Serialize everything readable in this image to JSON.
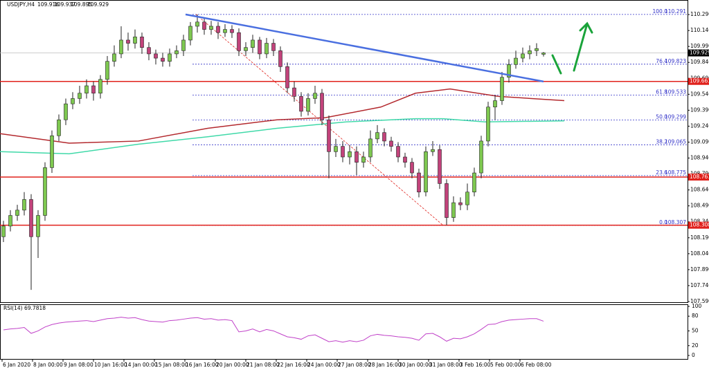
{
  "chart_data": {
    "type": "candlestick",
    "title": "USDJPY,H4",
    "bull_color": "#7ec850",
    "bear_color": "#c2437b",
    "ylim": [
      107.577,
      110.427
    ],
    "yticks": [
      {
        "value": 110.29,
        "label": "110.290"
      },
      {
        "value": 110.14,
        "label": "110.140"
      },
      {
        "value": 109.99,
        "label": "109.990"
      },
      {
        "value": 109.84,
        "label": "109.840"
      },
      {
        "value": 109.69,
        "label": "109.690"
      },
      {
        "value": 109.54,
        "label": "109.540"
      },
      {
        "value": 109.39,
        "label": "109.390"
      },
      {
        "value": 109.24,
        "label": "109.240"
      },
      {
        "value": 109.09,
        "label": "109.090"
      },
      {
        "value": 108.94,
        "label": "108.940"
      },
      {
        "value": 108.79,
        "label": "108.790"
      },
      {
        "value": 108.64,
        "label": "108.640"
      },
      {
        "value": 108.49,
        "label": "108.490"
      },
      {
        "value": 108.34,
        "label": "108.340"
      },
      {
        "value": 108.19,
        "label": "108.190"
      },
      {
        "value": 108.04,
        "label": "108.040"
      },
      {
        "value": 107.89,
        "label": "107.890"
      },
      {
        "value": 107.74,
        "label": "107.740"
      },
      {
        "value": 107.59,
        "label": "107.590"
      }
    ],
    "x_labels": [
      "6 Jan 2020",
      "8 Jan 00:00",
      "9 Jan 08:00",
      "10 Jan 16:00",
      "14 Jan 00:00",
      "15 Jan 08:00",
      "16 Jan 16:00",
      "20 Jan 00:00",
      "21 Jan 08:00",
      "22 Jan 16:00",
      "24 Jan 00:00",
      "27 Jan 08:00",
      "28 Jan 16:00",
      "30 Jan 00:00",
      "31 Jan 08:00",
      "3 Feb 16:00",
      "5 Feb 00:00",
      "6 Feb 08:00"
    ],
    "candles": [
      [
        108.2,
        108.35,
        108.15,
        108.3
      ],
      [
        108.3,
        108.45,
        108.25,
        108.4
      ],
      [
        108.4,
        108.5,
        108.35,
        108.45
      ],
      [
        108.45,
        108.62,
        108.4,
        108.55
      ],
      [
        108.55,
        108.6,
        107.7,
        108.2
      ],
      [
        108.2,
        108.45,
        108.0,
        108.4
      ],
      [
        108.4,
        108.9,
        108.35,
        108.85
      ],
      [
        108.85,
        109.2,
        108.8,
        109.15
      ],
      [
        109.15,
        109.35,
        109.1,
        109.3
      ],
      [
        109.3,
        109.5,
        109.25,
        109.45
      ],
      [
        109.45,
        109.56,
        109.4,
        109.5
      ],
      [
        109.5,
        109.62,
        109.45,
        109.55
      ],
      [
        109.55,
        109.68,
        109.5,
        109.62
      ],
      [
        109.62,
        109.66,
        109.48,
        109.55
      ],
      [
        109.55,
        109.72,
        109.5,
        109.68
      ],
      [
        109.68,
        109.9,
        109.63,
        109.85
      ],
      [
        109.85,
        110.0,
        109.8,
        109.92
      ],
      [
        109.92,
        110.18,
        109.88,
        110.05
      ],
      [
        110.05,
        110.12,
        109.95,
        110.02
      ],
      [
        110.02,
        110.15,
        109.97,
        110.08
      ],
      [
        110.08,
        110.12,
        109.92,
        109.98
      ],
      [
        109.98,
        110.03,
        109.86,
        109.92
      ],
      [
        109.92,
        109.96,
        109.82,
        109.88
      ],
      [
        109.88,
        109.93,
        109.8,
        109.85
      ],
      [
        109.85,
        109.97,
        109.8,
        109.92
      ],
      [
        109.92,
        110.0,
        109.88,
        109.95
      ],
      [
        109.95,
        110.1,
        109.9,
        110.05
      ],
      [
        110.05,
        110.22,
        110.0,
        110.18
      ],
      [
        110.18,
        110.291,
        110.12,
        110.22
      ],
      [
        110.22,
        110.26,
        110.1,
        110.15
      ],
      [
        110.15,
        110.23,
        110.1,
        110.18
      ],
      [
        110.18,
        110.22,
        110.06,
        110.12
      ],
      [
        110.12,
        110.2,
        110.08,
        110.15
      ],
      [
        110.15,
        110.19,
        110.07,
        110.12
      ],
      [
        110.12,
        110.16,
        109.9,
        109.95
      ],
      [
        109.95,
        110.03,
        109.9,
        109.98
      ],
      [
        109.98,
        110.1,
        109.93,
        110.05
      ],
      [
        110.05,
        110.08,
        109.87,
        109.92
      ],
      [
        109.92,
        110.07,
        109.88,
        110.02
      ],
      [
        110.02,
        110.06,
        109.9,
        109.95
      ],
      [
        109.95,
        109.99,
        109.75,
        109.8
      ],
      [
        109.8,
        109.84,
        109.55,
        109.6
      ],
      [
        109.6,
        109.66,
        109.47,
        109.52
      ],
      [
        109.52,
        109.56,
        109.33,
        109.38
      ],
      [
        109.38,
        109.55,
        109.34,
        109.5
      ],
      [
        109.5,
        109.62,
        109.45,
        109.55
      ],
      [
        109.55,
        109.59,
        109.25,
        109.3
      ],
      [
        109.3,
        109.34,
        108.75,
        109.0
      ],
      [
        109.0,
        109.12,
        108.95,
        109.05
      ],
      [
        109.05,
        109.1,
        108.9,
        108.95
      ],
      [
        108.95,
        109.06,
        108.88,
        109.0
      ],
      [
        109.0,
        109.05,
        108.78,
        108.9
      ],
      [
        108.9,
        109.0,
        108.85,
        108.95
      ],
      [
        108.95,
        109.2,
        108.9,
        109.12
      ],
      [
        109.12,
        109.25,
        109.08,
        109.18
      ],
      [
        109.18,
        109.22,
        109.05,
        109.1
      ],
      [
        109.1,
        109.14,
        109.0,
        109.05
      ],
      [
        109.05,
        109.09,
        108.9,
        108.95
      ],
      [
        108.95,
        108.99,
        108.85,
        108.9
      ],
      [
        108.9,
        108.94,
        108.75,
        108.8
      ],
      [
        108.8,
        108.84,
        108.57,
        108.62
      ],
      [
        108.62,
        109.05,
        108.58,
        109.0
      ],
      [
        109.0,
        109.1,
        108.96,
        109.02
      ],
      [
        109.02,
        109.06,
        108.65,
        108.7
      ],
      [
        108.7,
        108.74,
        108.307,
        108.38
      ],
      [
        108.38,
        108.58,
        108.34,
        108.52
      ],
      [
        108.52,
        108.57,
        108.45,
        108.5
      ],
      [
        108.5,
        108.7,
        108.45,
        108.62
      ],
      [
        108.62,
        108.85,
        108.58,
        108.8
      ],
      [
        108.8,
        109.15,
        108.75,
        109.1
      ],
      [
        109.1,
        109.47,
        109.05,
        109.42
      ],
      [
        109.42,
        109.53,
        109.3,
        109.48
      ],
      [
        109.48,
        109.75,
        109.44,
        109.7
      ],
      [
        109.7,
        109.87,
        109.65,
        109.82
      ],
      [
        109.82,
        109.95,
        109.78,
        109.88
      ],
      [
        109.88,
        109.98,
        109.84,
        109.92
      ],
      [
        109.92,
        110.0,
        109.87,
        109.95
      ],
      [
        109.95,
        110.02,
        109.9,
        109.97
      ],
      [
        109.916,
        109.937,
        109.895,
        109.929
      ]
    ],
    "ma_red": {
      "color": "#b3282d",
      "x": [
        -0.5,
        9.5,
        19.5,
        29.5,
        39.5,
        46.5,
        54.5,
        59.5,
        64.5,
        71.5,
        81
      ],
      "values": [
        109.17,
        109.08,
        109.1,
        109.22,
        109.3,
        109.32,
        109.42,
        109.55,
        109.59,
        109.52,
        109.48
      ]
    },
    "ma_green": {
      "color": "#3fd9a8",
      "x": [
        -0.5,
        9.5,
        19.5,
        29.5,
        39.5,
        49.5,
        59.5,
        63.5,
        69.5,
        81
      ],
      "values": [
        109.0,
        108.98,
        109.07,
        109.14,
        109.22,
        109.28,
        109.31,
        109.31,
        109.28,
        109.29
      ]
    },
    "trendline": {
      "color": "#4a6fe0",
      "x": [
        26.3,
        78
      ],
      "values": [
        110.291,
        109.66
      ]
    },
    "levels": {
      "color": "#e0201b",
      "values": [
        109.661,
        108.761,
        108.308
      ]
    },
    "fib": {
      "color": "#3030c8",
      "levels": [
        {
          "level": "100.0",
          "value": 110.291
        },
        {
          "level": "76.4",
          "value": 109.823
        },
        {
          "level": "61.8",
          "value": 109.533
        },
        {
          "level": "50.0",
          "value": 109.299
        },
        {
          "level": "38.2",
          "value": 109.065
        },
        {
          "level": "23.6",
          "value": 108.775
        },
        {
          "level": "0.0",
          "value": 108.307
        }
      ]
    },
    "rsi": {
      "title": "RSI(14)",
      "color": "#c040c8",
      "ylim": [
        -8.5,
        104.2
      ],
      "yticks": [
        100,
        80,
        50,
        20,
        0
      ],
      "values": [
        52,
        54,
        55,
        57,
        45,
        50,
        58,
        63,
        66,
        68,
        69,
        70,
        71,
        69,
        72,
        75,
        76,
        78,
        76,
        77,
        73,
        70,
        69,
        68,
        71,
        72,
        74,
        76,
        77,
        74,
        75,
        72,
        73,
        71,
        48,
        50,
        54,
        48,
        53,
        50,
        44,
        38,
        36,
        33,
        40,
        42,
        35,
        28,
        30,
        27,
        30,
        28,
        31,
        40,
        43,
        41,
        40,
        38,
        37,
        35,
        31,
        44,
        45,
        38,
        29,
        35,
        34,
        38,
        44,
        53,
        63,
        64,
        69,
        72,
        73,
        74,
        75,
        75,
        69.7818
      ]
    }
  }
}
